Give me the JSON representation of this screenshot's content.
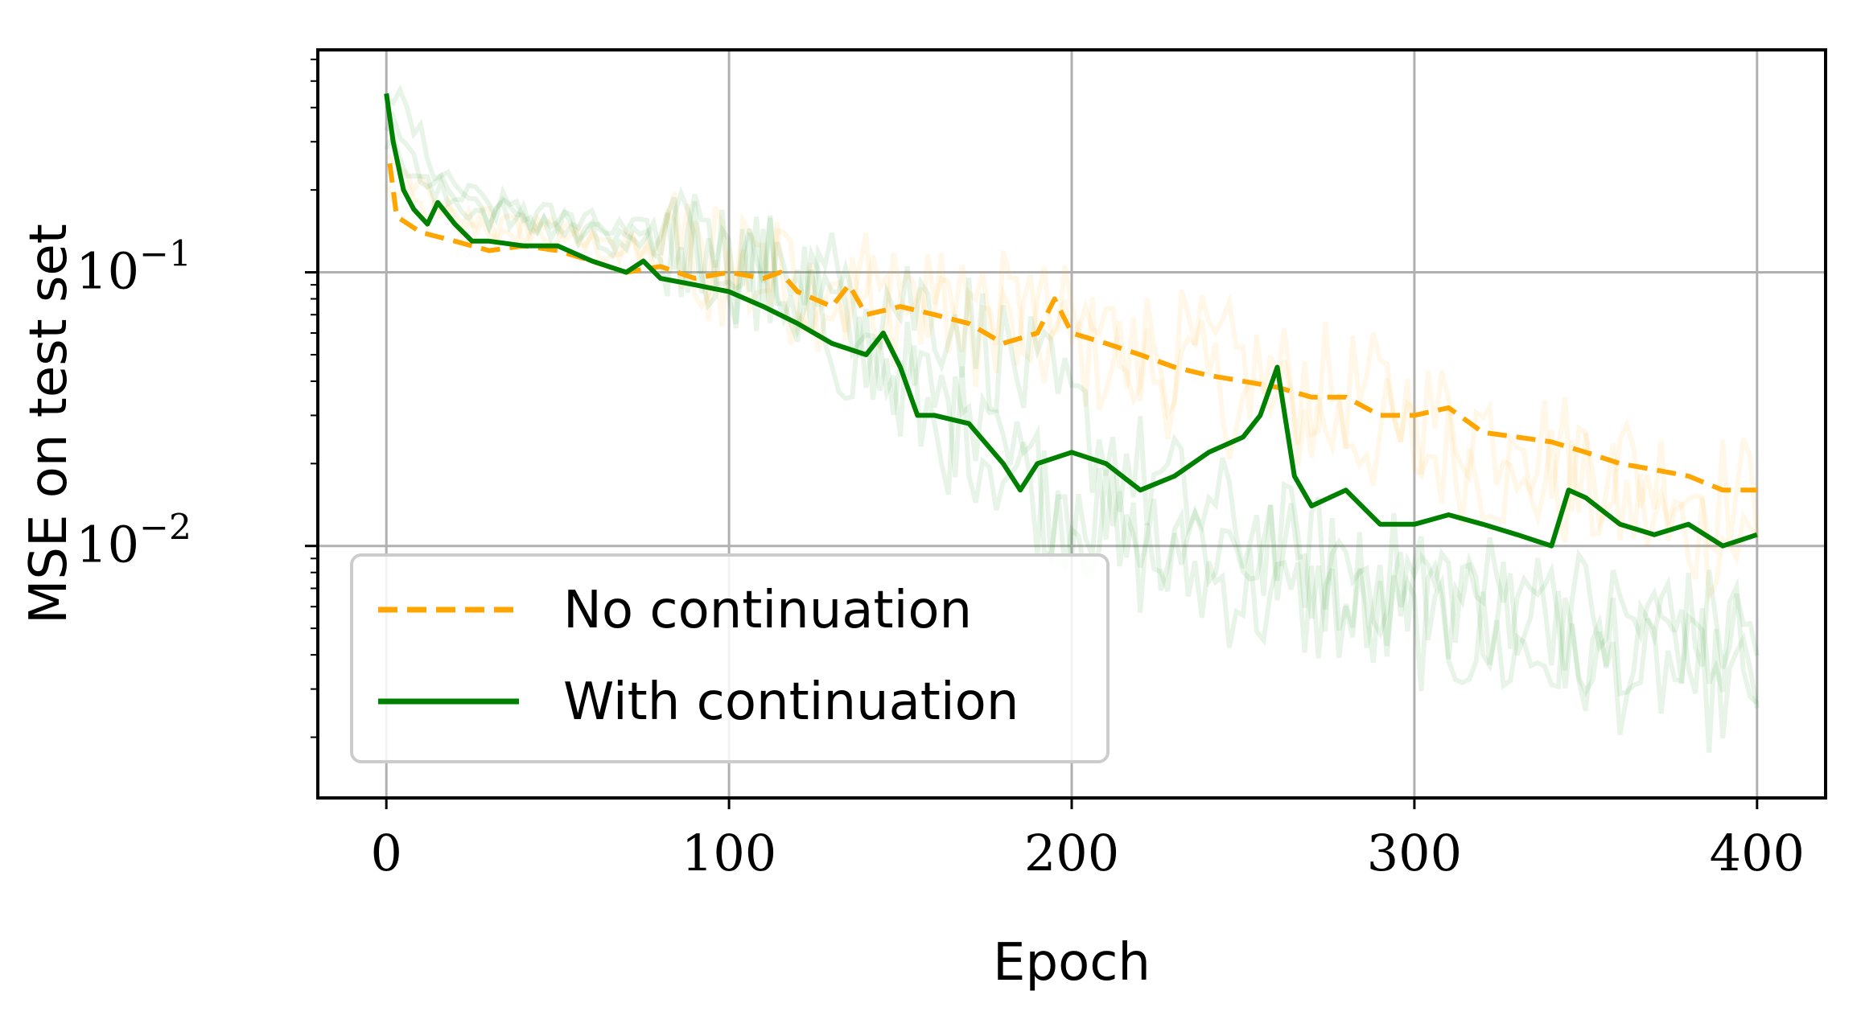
{
  "chart_data": {
    "type": "line",
    "title": "",
    "xlabel": "Epoch",
    "ylabel": "MSE on test set",
    "xlim": [
      -20,
      420
    ],
    "ylim": [
      0.0012,
      0.65
    ],
    "yscale": "log",
    "grid": true,
    "legend_position": "lower-left",
    "x_ticks": [
      {
        "value": 0,
        "label": "0"
      },
      {
        "value": 100,
        "label": "100"
      },
      {
        "value": 200,
        "label": "200"
      },
      {
        "value": 300,
        "label": "300"
      },
      {
        "value": 400,
        "label": "400"
      }
    ],
    "y_ticks": [
      {
        "value": 0.1,
        "base": "10",
        "exp": "−1"
      },
      {
        "value": 0.01,
        "base": "10",
        "exp": "−2"
      }
    ],
    "series": [
      {
        "name": "No continuation",
        "color": "#ffa500",
        "style": "dashed",
        "points": [
          [
            1,
            0.25
          ],
          [
            3,
            0.16
          ],
          [
            10,
            0.14
          ],
          [
            20,
            0.13
          ],
          [
            30,
            0.12
          ],
          [
            40,
            0.125
          ],
          [
            50,
            0.12
          ],
          [
            60,
            0.11
          ],
          [
            70,
            0.1
          ],
          [
            80,
            0.105
          ],
          [
            90,
            0.095
          ],
          [
            100,
            0.1
          ],
          [
            110,
            0.095
          ],
          [
            115,
            0.1
          ],
          [
            120,
            0.085
          ],
          [
            130,
            0.075
          ],
          [
            135,
            0.09
          ],
          [
            140,
            0.07
          ],
          [
            150,
            0.075
          ],
          [
            160,
            0.07
          ],
          [
            170,
            0.065
          ],
          [
            180,
            0.055
          ],
          [
            190,
            0.06
          ],
          [
            195,
            0.08
          ],
          [
            200,
            0.06
          ],
          [
            210,
            0.055
          ],
          [
            220,
            0.05
          ],
          [
            230,
            0.045
          ],
          [
            240,
            0.042
          ],
          [
            250,
            0.04
          ],
          [
            260,
            0.038
          ],
          [
            270,
            0.035
          ],
          [
            280,
            0.035
          ],
          [
            290,
            0.03
          ],
          [
            300,
            0.03
          ],
          [
            310,
            0.032
          ],
          [
            320,
            0.026
          ],
          [
            330,
            0.025
          ],
          [
            340,
            0.024
          ],
          [
            350,
            0.022
          ],
          [
            360,
            0.02
          ],
          [
            370,
            0.019
          ],
          [
            380,
            0.018
          ],
          [
            390,
            0.016
          ],
          [
            400,
            0.016
          ]
        ]
      },
      {
        "name": "With continuation",
        "color": "#008000",
        "style": "solid",
        "points": [
          [
            0,
            0.45
          ],
          [
            2,
            0.3
          ],
          [
            5,
            0.2
          ],
          [
            8,
            0.17
          ],
          [
            12,
            0.15
          ],
          [
            15,
            0.18
          ],
          [
            20,
            0.15
          ],
          [
            25,
            0.13
          ],
          [
            30,
            0.13
          ],
          [
            40,
            0.125
          ],
          [
            50,
            0.125
          ],
          [
            60,
            0.11
          ],
          [
            70,
            0.1
          ],
          [
            75,
            0.11
          ],
          [
            80,
            0.095
          ],
          [
            90,
            0.09
          ],
          [
            100,
            0.085
          ],
          [
            110,
            0.075
          ],
          [
            120,
            0.065
          ],
          [
            130,
            0.055
          ],
          [
            140,
            0.05
          ],
          [
            145,
            0.06
          ],
          [
            150,
            0.045
          ],
          [
            155,
            0.03
          ],
          [
            160,
            0.03
          ],
          [
            170,
            0.028
          ],
          [
            180,
            0.02
          ],
          [
            185,
            0.016
          ],
          [
            190,
            0.02
          ],
          [
            200,
            0.022
          ],
          [
            210,
            0.02
          ],
          [
            220,
            0.016
          ],
          [
            230,
            0.018
          ],
          [
            240,
            0.022
          ],
          [
            250,
            0.025
          ],
          [
            255,
            0.03
          ],
          [
            260,
            0.045
          ],
          [
            265,
            0.018
          ],
          [
            270,
            0.014
          ],
          [
            280,
            0.016
          ],
          [
            290,
            0.012
          ],
          [
            300,
            0.012
          ],
          [
            310,
            0.013
          ],
          [
            320,
            0.012
          ],
          [
            330,
            0.011
          ],
          [
            340,
            0.01
          ],
          [
            345,
            0.016
          ],
          [
            350,
            0.015
          ],
          [
            360,
            0.012
          ],
          [
            370,
            0.011
          ],
          [
            380,
            0.012
          ],
          [
            390,
            0.01
          ],
          [
            400,
            0.011
          ]
        ]
      }
    ],
    "background_runs": [
      {
        "color": "#ffa500",
        "values": [
          0.2,
          0.16,
          0.15,
          0.14,
          0.13,
          0.12,
          0.11,
          0.1,
          0.095,
          0.09,
          0.08,
          0.075,
          0.07,
          0.06,
          0.055,
          0.05,
          0.045,
          0.04,
          0.035,
          0.03,
          0.028,
          0.025,
          0.022,
          0.02,
          0.018,
          0.016,
          0.014,
          0.012,
          0.011,
          0.01
        ]
      },
      {
        "color": "#ffa500",
        "values": [
          0.28,
          0.17,
          0.15,
          0.14,
          0.13,
          0.125,
          0.12,
          0.11,
          0.1,
          0.095,
          0.09,
          0.085,
          0.08,
          0.07,
          0.065,
          0.06,
          0.055,
          0.05,
          0.045,
          0.04,
          0.038,
          0.035,
          0.03,
          0.028,
          0.025,
          0.022,
          0.02,
          0.018,
          0.016,
          0.015
        ]
      },
      {
        "color": "#008000",
        "values": [
          0.5,
          0.25,
          0.17,
          0.16,
          0.15,
          0.14,
          0.13,
          0.12,
          0.1,
          0.08,
          0.06,
          0.04,
          0.03,
          0.02,
          0.015,
          0.012,
          0.009,
          0.008,
          0.007,
          0.006,
          0.006,
          0.005,
          0.005,
          0.0045,
          0.004,
          0.004,
          0.0035,
          0.0035,
          0.003,
          0.003
        ]
      },
      {
        "color": "#008000",
        "values": [
          0.35,
          0.2,
          0.18,
          0.16,
          0.15,
          0.14,
          0.13,
          0.11,
          0.09,
          0.07,
          0.05,
          0.035,
          0.025,
          0.02,
          0.016,
          0.014,
          0.012,
          0.011,
          0.01,
          0.009,
          0.008,
          0.007,
          0.007,
          0.006,
          0.006,
          0.005,
          0.005,
          0.005,
          0.0045,
          0.0045
        ]
      },
      {
        "color": "#008000",
        "values": [
          0.3,
          0.19,
          0.17,
          0.15,
          0.14,
          0.13,
          0.12,
          0.11,
          0.1,
          0.09,
          0.085,
          0.08,
          0.07,
          0.05,
          0.035,
          0.025,
          0.018,
          0.014,
          0.012,
          0.01,
          0.009,
          0.008,
          0.0075,
          0.007,
          0.0065,
          0.006,
          0.0055,
          0.005,
          0.005,
          0.0048
        ]
      }
    ]
  }
}
